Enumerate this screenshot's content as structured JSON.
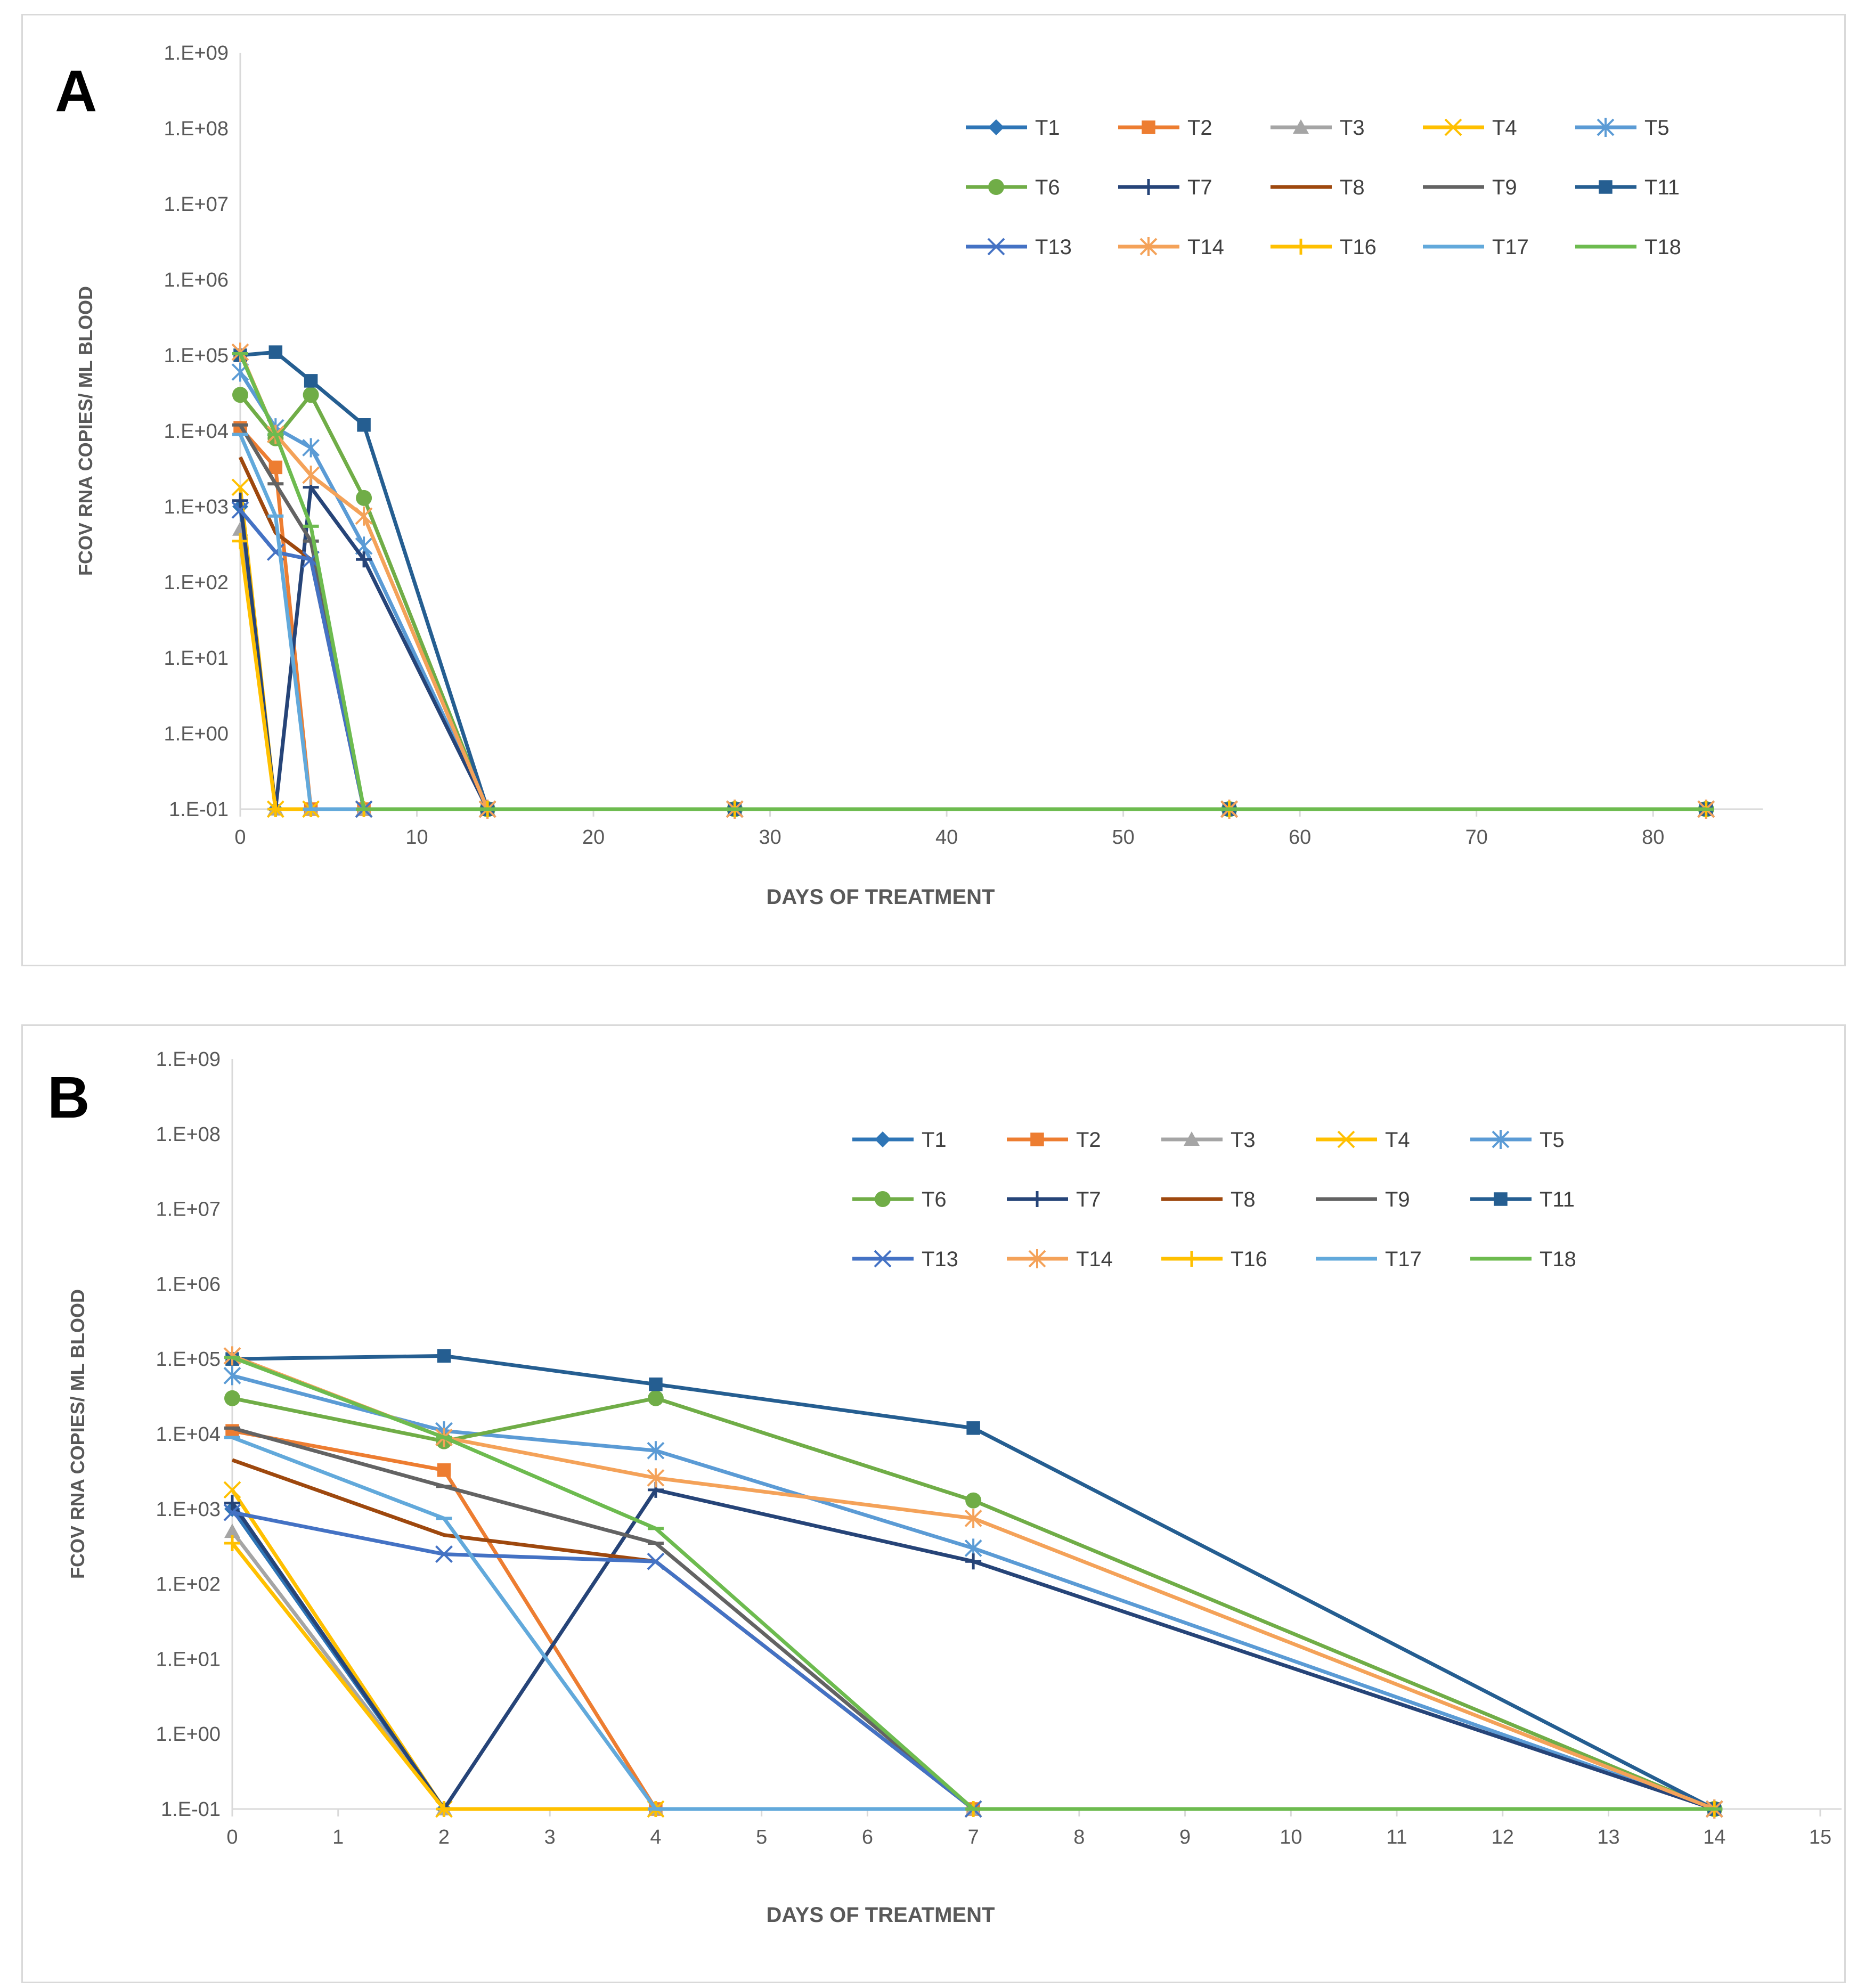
{
  "panels": [
    {
      "letter": "A",
      "xlabel": "DAYS OF TREATMENT",
      "ylabel": "FCOV RNA COPIES/ ML BLOOD",
      "xticks": [
        0,
        10,
        20,
        30,
        40,
        50,
        60,
        70,
        80
      ],
      "yticks": [
        "1.E-01",
        "1.E+00",
        "1.E+01",
        "1.E+02",
        "1.E+03",
        "1.E+04",
        "1.E+05",
        "1.E+06",
        "1.E+07",
        "1.E+08",
        "1.E+09"
      ]
    },
    {
      "letter": "B",
      "xlabel": "DAYS OF TREATMENT",
      "ylabel": "FCOV RNA COPIES/ ML BLOOD",
      "xticks": [
        0,
        1,
        2,
        3,
        4,
        5,
        6,
        7,
        8,
        9,
        10,
        11,
        12,
        13,
        14,
        15
      ],
      "yticks": [
        "1.E-01",
        "1.E+00",
        "1.E+01",
        "1.E+02",
        "1.E+03",
        "1.E+04",
        "1.E+05",
        "1.E+06",
        "1.E+07",
        "1.E+08",
        "1.E+09"
      ]
    }
  ],
  "chart_data": [
    {
      "type": "line",
      "panel": "A",
      "xlabel": "DAYS OF TREATMENT",
      "ylabel": "FCOV RNA COPIES/ ML BLOOD",
      "yscale": "log",
      "xlim": [
        0,
        85
      ],
      "ylim": [
        0.1,
        1000000000
      ],
      "legend_position": "top-right",
      "series": [
        {
          "name": "T1",
          "color": "#2e75b6",
          "marker": "diamond",
          "x": [
            0,
            2,
            4,
            7,
            14,
            28,
            56,
            83
          ],
          "y": [
            1000,
            0.1,
            0.1,
            0.1,
            0.1,
            0.1,
            0.1,
            0.1
          ]
        },
        {
          "name": "T2",
          "color": "#ed7d31",
          "marker": "square",
          "x": [
            0,
            2,
            4,
            7,
            14,
            28,
            56,
            83
          ],
          "y": [
            11000,
            3300,
            0.1,
            0.1,
            0.1,
            0.1,
            0.1,
            0.1
          ]
        },
        {
          "name": "T3",
          "color": "#a5a5a5",
          "marker": "triangle",
          "x": [
            0,
            2,
            4,
            7,
            14,
            28,
            56,
            83
          ],
          "y": [
            500,
            0.1,
            0.1,
            0.1,
            0.1,
            0.1,
            0.1,
            0.1
          ]
        },
        {
          "name": "T4",
          "color": "#ffc000",
          "marker": "x",
          "x": [
            0,
            2,
            4,
            7,
            14,
            28,
            56,
            83
          ],
          "y": [
            1800,
            0.1,
            0.1,
            0.1,
            0.1,
            0.1,
            0.1,
            0.1
          ]
        },
        {
          "name": "T5",
          "color": "#5b9bd5",
          "marker": "star",
          "x": [
            0,
            2,
            4,
            7,
            14,
            28,
            56,
            83
          ],
          "y": [
            60000,
            11000,
            6000,
            300,
            0.1,
            0.1,
            0.1,
            0.1
          ]
        },
        {
          "name": "T6",
          "color": "#70ad47",
          "marker": "circle",
          "x": [
            0,
            2,
            4,
            7,
            14,
            28,
            56,
            83
          ],
          "y": [
            30000,
            8000,
            30000,
            1300,
            0.1,
            0.1,
            0.1,
            0.1
          ]
        },
        {
          "name": "T7",
          "color": "#264478",
          "marker": "plus",
          "x": [
            0,
            2,
            4,
            7,
            14,
            28,
            56,
            83
          ],
          "y": [
            1200,
            0.1,
            1800,
            200,
            0.1,
            0.1,
            0.1,
            0.1
          ]
        },
        {
          "name": "T8",
          "color": "#9e480e",
          "marker": "none",
          "x": [
            0,
            2,
            4,
            7,
            14,
            28,
            56,
            83
          ],
          "y": [
            4500,
            450,
            200,
            0.1,
            0.1,
            0.1,
            0.1,
            0.1
          ]
        },
        {
          "name": "T9",
          "color": "#636363",
          "marker": "dash",
          "x": [
            0,
            2,
            4,
            7,
            14,
            28,
            56,
            83
          ],
          "y": [
            12000,
            2000,
            350,
            0.1,
            0.1,
            0.1,
            0.1,
            0.1
          ]
        },
        {
          "name": "T11",
          "color": "#255e91",
          "marker": "square",
          "x": [
            0,
            2,
            4,
            7,
            14,
            28,
            56,
            83
          ],
          "y": [
            100000,
            110000,
            46000,
            12000,
            0.1,
            0.1,
            0.1,
            0.1
          ]
        },
        {
          "name": "T13",
          "color": "#4472c4",
          "marker": "x",
          "x": [
            0,
            2,
            4,
            7,
            14,
            28,
            56,
            83
          ],
          "y": [
            900,
            250,
            200,
            0.1,
            0.1,
            0.1,
            0.1,
            0.1
          ]
        },
        {
          "name": "T14",
          "color": "#f4a259",
          "marker": "star",
          "x": [
            0,
            2,
            4,
            7,
            14,
            28,
            56,
            83
          ],
          "y": [
            110000,
            9000,
            2600,
            750,
            0.1,
            0.1,
            0.1,
            0.1
          ]
        },
        {
          "name": "T16",
          "color": "#ffc000",
          "marker": "plus",
          "x": [
            0,
            2,
            4,
            7,
            14,
            28,
            56,
            83
          ],
          "y": [
            350,
            0.1,
            0.1,
            0.1,
            0.1,
            0.1,
            0.1,
            0.1
          ]
        },
        {
          "name": "T17",
          "color": "#62a9db",
          "marker": "dash",
          "x": [
            0,
            2,
            4,
            7,
            14,
            28,
            56,
            83
          ],
          "y": [
            9000,
            750,
            0.1,
            0.1,
            0.1,
            0.1,
            0.1,
            0.1
          ]
        },
        {
          "name": "T18",
          "color": "#6dbb4f",
          "marker": "dash",
          "x": [
            0,
            2,
            4,
            7,
            14,
            28,
            56,
            83
          ],
          "y": [
            105000,
            9000,
            550,
            0.1,
            0.1,
            0.1,
            0.1,
            0.1
          ]
        }
      ]
    },
    {
      "type": "line",
      "panel": "B",
      "xlabel": "DAYS OF TREATMENT",
      "ylabel": "FCOV RNA COPIES/ ML BLOOD",
      "yscale": "log",
      "xlim": [
        0,
        15
      ],
      "ylim": [
        0.1,
        1000000000
      ],
      "legend_position": "top-right",
      "series": [
        {
          "name": "T1",
          "color": "#2e75b6",
          "marker": "diamond",
          "x": [
            0,
            2,
            4,
            7,
            14
          ],
          "y": [
            1000,
            0.1,
            0.1,
            0.1,
            0.1
          ]
        },
        {
          "name": "T2",
          "color": "#ed7d31",
          "marker": "square",
          "x": [
            0,
            2,
            4,
            7,
            14
          ],
          "y": [
            11000,
            3300,
            0.1,
            0.1,
            0.1
          ]
        },
        {
          "name": "T3",
          "color": "#a5a5a5",
          "marker": "triangle",
          "x": [
            0,
            2,
            4,
            7,
            14
          ],
          "y": [
            500,
            0.1,
            0.1,
            0.1,
            0.1
          ]
        },
        {
          "name": "T4",
          "color": "#ffc000",
          "marker": "x",
          "x": [
            0,
            2,
            4,
            7,
            14
          ],
          "y": [
            1800,
            0.1,
            0.1,
            0.1,
            0.1
          ]
        },
        {
          "name": "T5",
          "color": "#5b9bd5",
          "marker": "star",
          "x": [
            0,
            2,
            4,
            7,
            14
          ],
          "y": [
            60000,
            11000,
            6000,
            300,
            0.1
          ]
        },
        {
          "name": "T6",
          "color": "#70ad47",
          "marker": "circle",
          "x": [
            0,
            2,
            4,
            7,
            14
          ],
          "y": [
            30000,
            8000,
            30000,
            1300,
            0.1
          ]
        },
        {
          "name": "T7",
          "color": "#264478",
          "marker": "plus",
          "x": [
            0,
            2,
            4,
            7,
            14
          ],
          "y": [
            1200,
            0.1,
            1800,
            200,
            0.1
          ]
        },
        {
          "name": "T8",
          "color": "#9e480e",
          "marker": "none",
          "x": [
            0,
            2,
            4,
            7,
            14
          ],
          "y": [
            4500,
            450,
            200,
            0.1,
            0.1
          ]
        },
        {
          "name": "T9",
          "color": "#636363",
          "marker": "dash",
          "x": [
            0,
            2,
            4,
            7,
            14
          ],
          "y": [
            12000,
            2000,
            350,
            0.1,
            0.1
          ]
        },
        {
          "name": "T11",
          "color": "#255e91",
          "marker": "square",
          "x": [
            0,
            2,
            4,
            7,
            14
          ],
          "y": [
            100000,
            110000,
            46000,
            12000,
            0.1
          ]
        },
        {
          "name": "T13",
          "color": "#4472c4",
          "marker": "x",
          "x": [
            0,
            2,
            4,
            7,
            14
          ],
          "y": [
            900,
            250,
            200,
            0.1,
            0.1
          ]
        },
        {
          "name": "T14",
          "color": "#f4a259",
          "marker": "star",
          "x": [
            0,
            2,
            4,
            7,
            14
          ],
          "y": [
            110000,
            9000,
            2600,
            750,
            0.1
          ]
        },
        {
          "name": "T16",
          "color": "#ffc000",
          "marker": "plus",
          "x": [
            0,
            2,
            4,
            7,
            14
          ],
          "y": [
            350,
            0.1,
            0.1,
            0.1,
            0.1
          ]
        },
        {
          "name": "T17",
          "color": "#62a9db",
          "marker": "dash",
          "x": [
            0,
            2,
            4,
            7,
            14
          ],
          "y": [
            9000,
            750,
            0.1,
            0.1,
            0.1
          ]
        },
        {
          "name": "T18",
          "color": "#6dbb4f",
          "marker": "dash",
          "x": [
            0,
            2,
            4,
            7,
            14
          ],
          "y": [
            105000,
            9000,
            550,
            0.1,
            0.1
          ]
        }
      ]
    }
  ]
}
